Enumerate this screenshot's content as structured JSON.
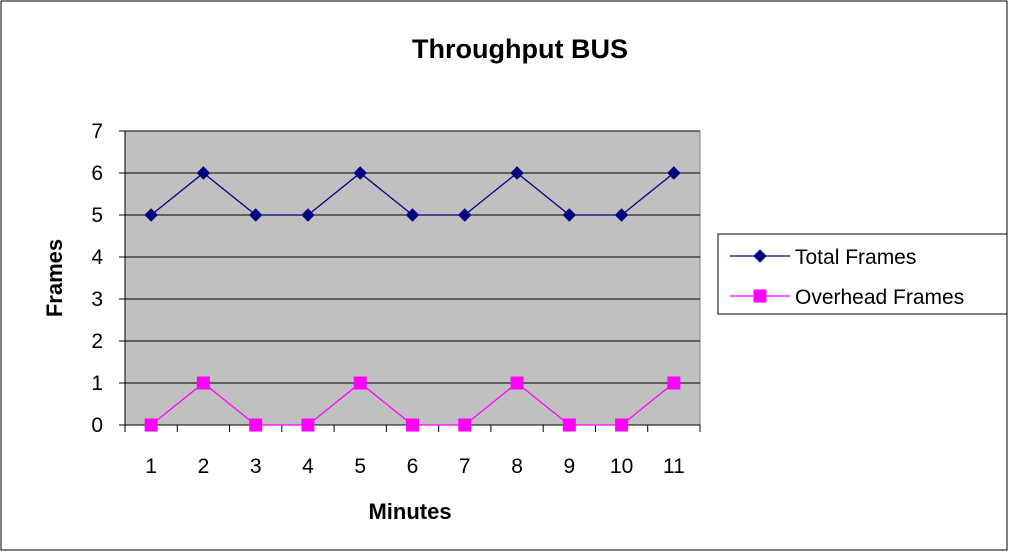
{
  "chart_data": {
    "type": "line",
    "title": "Throughput BUS",
    "xlabel": "Minutes",
    "ylabel": "Frames",
    "categories": [
      "1",
      "2",
      "3",
      "4",
      "5",
      "6",
      "7",
      "8",
      "9",
      "10",
      "11"
    ],
    "ylim": [
      0,
      7
    ],
    "yticks": [
      "0",
      "1",
      "2",
      "3",
      "4",
      "5",
      "6",
      "7"
    ],
    "grid": true,
    "legend_position": "right",
    "plot_background": "#c0c0c0",
    "series": [
      {
        "name": "Total Frames",
        "values": [
          5,
          6,
          5,
          5,
          6,
          5,
          5,
          6,
          5,
          5,
          6
        ],
        "color": "#000080",
        "marker": "diamond"
      },
      {
        "name": "Overhead Frames",
        "values": [
          0,
          1,
          0,
          0,
          1,
          0,
          0,
          1,
          0,
          0,
          1
        ],
        "color": "#ff00ff",
        "marker": "square"
      }
    ]
  }
}
